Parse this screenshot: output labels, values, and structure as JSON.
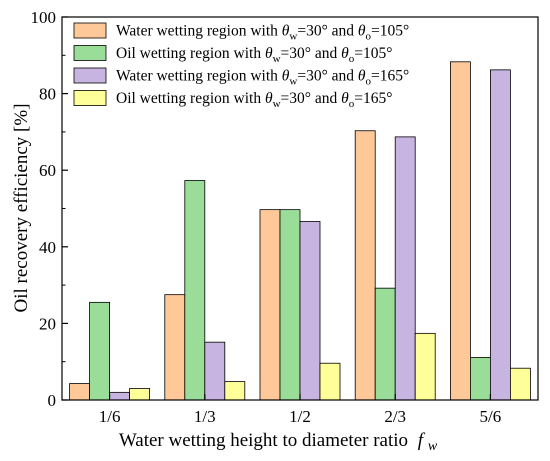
{
  "chart_data": {
    "type": "bar",
    "xlabel": "Water wetting height to diameter ratio",
    "xlabel_var": "f",
    "xlabel_sub": "w",
    "ylabel": "Oil recovery efficiency [%]",
    "ylim": [
      0,
      100
    ],
    "yticks": [
      "0",
      "20",
      "40",
      "60",
      "80",
      "100"
    ],
    "categories": [
      "1/6",
      "1/3",
      "1/2",
      "2/3",
      "5/6"
    ],
    "legend_position": "top-left",
    "grid": false,
    "series": [
      {
        "name": "Water wetting region with θw=30° and θo=105°",
        "region": "Water wetting region with",
        "t2": "105°",
        "color": "#FFC899",
        "values": [
          4.3,
          27.5,
          49.7,
          70.3,
          88.3
        ]
      },
      {
        "name": "Oil wetting region with θw=30° and θo=105°",
        "region": "Oil wetting region with",
        "t2": "105°",
        "color": "#99DD99",
        "values": [
          25.5,
          57.3,
          49.7,
          29.2,
          11.1
        ]
      },
      {
        "name": "Water wetting region with θw=30° and θo=165°",
        "region": "Water wetting region with",
        "t2": "165°",
        "color": "#C7B4E0",
        "values": [
          2.0,
          15.1,
          46.6,
          68.7,
          86.2
        ]
      },
      {
        "name": "Oil wetting region with θw=30° and θo=165°",
        "region": "Oil wetting region with",
        "t2": "165°",
        "color": "#FFFF99",
        "values": [
          3.0,
          4.8,
          9.6,
          17.4,
          8.3
        ]
      }
    ],
    "legend_theta_symbol": "θ",
    "legend_sub_w": "w",
    "legend_sub_o": "o",
    "legend_eq1": "=30°",
    "legend_and": "and",
    "legend_eq": "="
  }
}
